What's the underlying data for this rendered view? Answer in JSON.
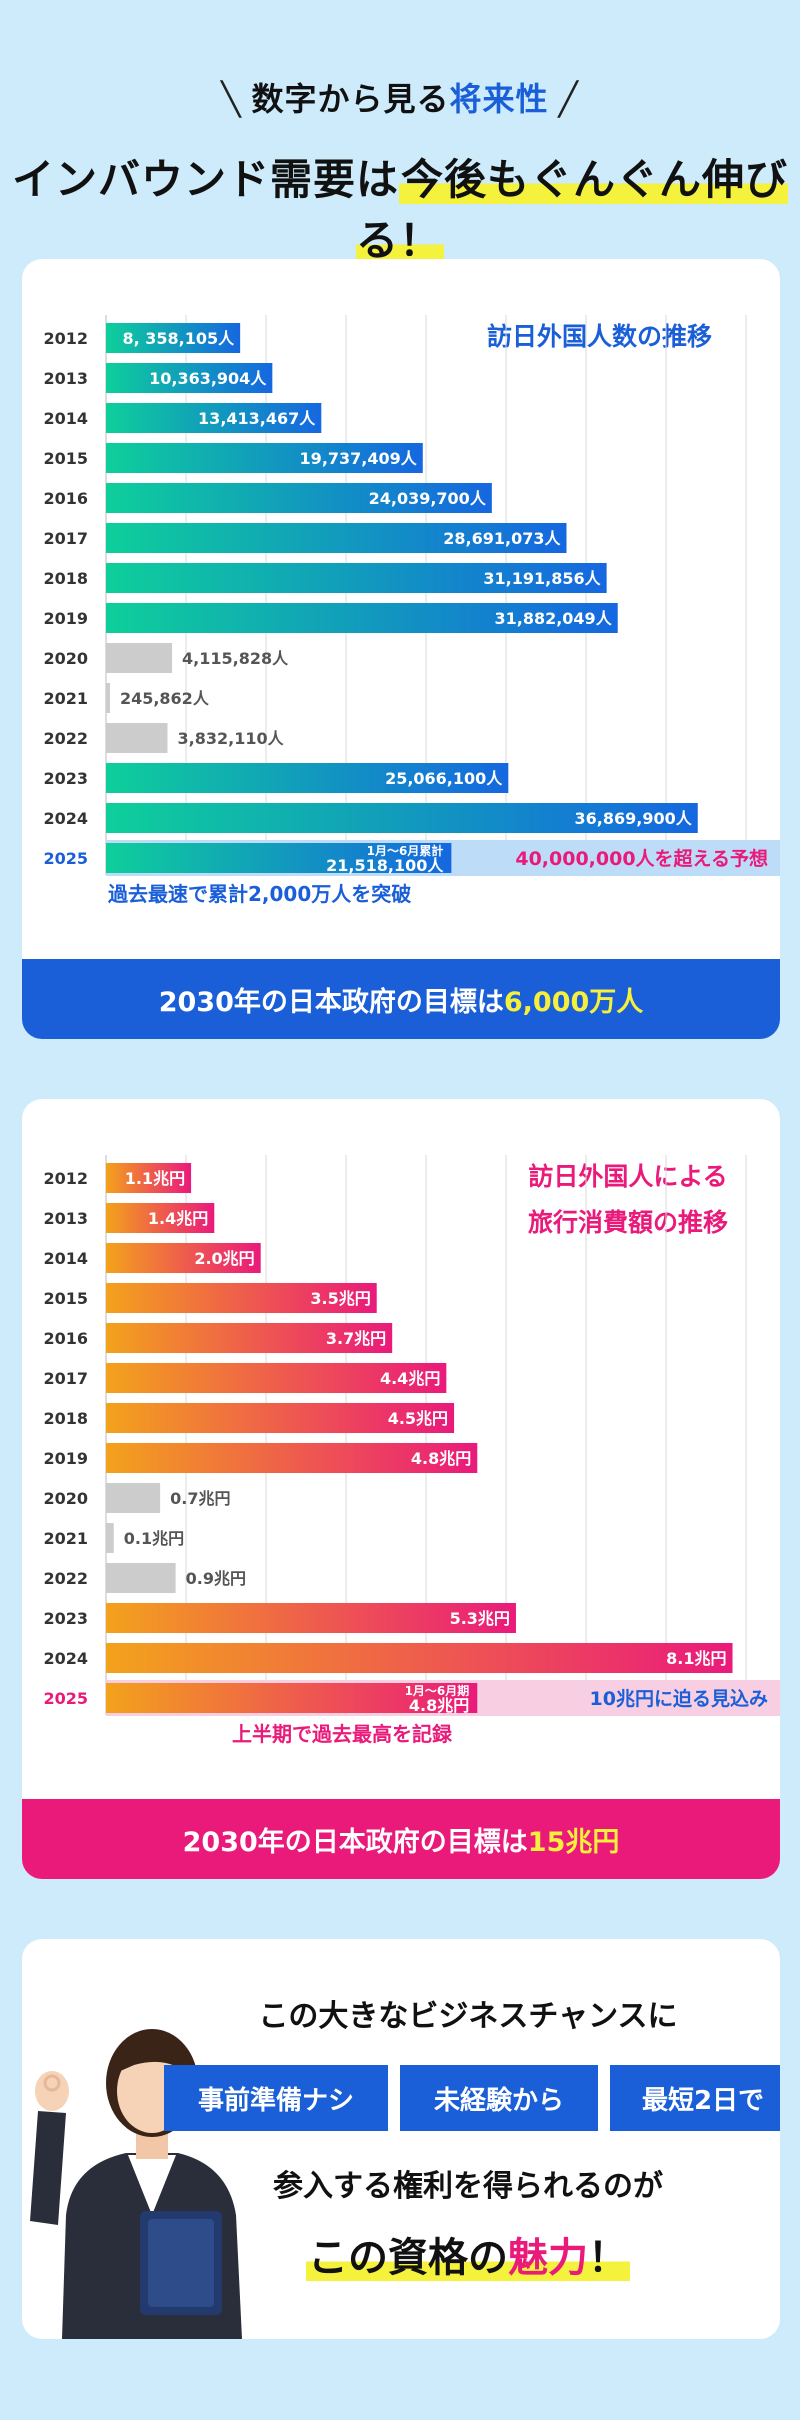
{
  "header": {
    "line1_pre": "数字から見る",
    "line1_accent": "将来性",
    "line2_pre": "インバウンド需要は",
    "line2_hl": "今後もぐんぐん伸びる！"
  },
  "visitors": {
    "title": "訪日外国人数の推移",
    "footer_pre": "2030年の日本政府の目標は",
    "footer_hl": "6,000万人",
    "note_2025_small": "1月〜6月累計",
    "forecast": "40,000,000人を超える予想",
    "under_note": "過去最速で累計2,000万人を突破",
    "chart_data": {
      "type": "bar",
      "orientation": "horizontal",
      "categories": [
        "2012",
        "2013",
        "2014",
        "2015",
        "2016",
        "2017",
        "2018",
        "2019",
        "2020",
        "2021",
        "2022",
        "2023",
        "2024",
        "2025"
      ],
      "values": [
        8358105,
        10363904,
        13413467,
        19737409,
        24039700,
        28691073,
        31191856,
        31882049,
        4115828,
        245862,
        3832110,
        25066100,
        36869900,
        21518100
      ],
      "labels": [
        "8, 358,105人",
        "10,363,904人",
        "13,413,467人",
        "19,737,409人",
        "24,039,700人",
        "28,691,073人",
        "31,191,856人",
        "31,882,049人",
        "4,115,828人",
        "245,862人",
        "3,832,110人",
        "25,066,100人",
        "36,869,900人",
        "21,518,100人"
      ],
      "low_years": [
        "2020",
        "2021",
        "2022"
      ],
      "forecast_value": 40000000,
      "xlim": [
        0,
        40000000
      ],
      "grid": true,
      "colors": {
        "bar_start": "#0ecf9a",
        "bar_end": "#1567e0",
        "low": "#cccccc",
        "forecast": "#bcdcf8"
      }
    }
  },
  "spending": {
    "title_line1": "訪日外国人による",
    "title_line2": "旅行消費額の推移",
    "footer_pre": "2030年の日本政府の目標は",
    "footer_hl": "15兆円",
    "note_2025_small": "1月〜6月期",
    "forecast": "10兆円に迫る見込み",
    "under_note": "上半期で過去最高を記録",
    "chart_data": {
      "type": "bar",
      "orientation": "horizontal",
      "categories": [
        "2012",
        "2013",
        "2014",
        "2015",
        "2016",
        "2017",
        "2018",
        "2019",
        "2020",
        "2021",
        "2022",
        "2023",
        "2024",
        "2025"
      ],
      "values": [
        1.1,
        1.4,
        2.0,
        3.5,
        3.7,
        4.4,
        4.5,
        4.8,
        0.7,
        0.1,
        0.9,
        5.3,
        8.1,
        4.8
      ],
      "labels": [
        "1.1兆円",
        "1.4兆円",
        "2.0兆円",
        "3.5兆円",
        "3.7兆円",
        "4.4兆円",
        "4.5兆円",
        "4.8兆円",
        "0.7兆円",
        "0.1兆円",
        "0.9兆円",
        "5.3兆円",
        "8.1兆円",
        "4.8兆円"
      ],
      "low_years": [
        "2020",
        "2021",
        "2022"
      ],
      "forecast_value": 10,
      "xlim": [
        0,
        8.3
      ],
      "grid": true,
      "colors": {
        "bar_start": "#f3a21c",
        "bar_end": "#ea1a7b",
        "low": "#cccccc",
        "forecast": "#f8cfe2"
      }
    }
  },
  "promo": {
    "line1": "この大きなビジネスチャンスに",
    "badges": [
      "事前準備ナシ",
      "未経験から",
      "最短2日で"
    ],
    "line2": "参入する権利を得られるのが",
    "line3_pre": "この資格の",
    "line3_pink": "魅力",
    "line3_post": "！"
  }
}
